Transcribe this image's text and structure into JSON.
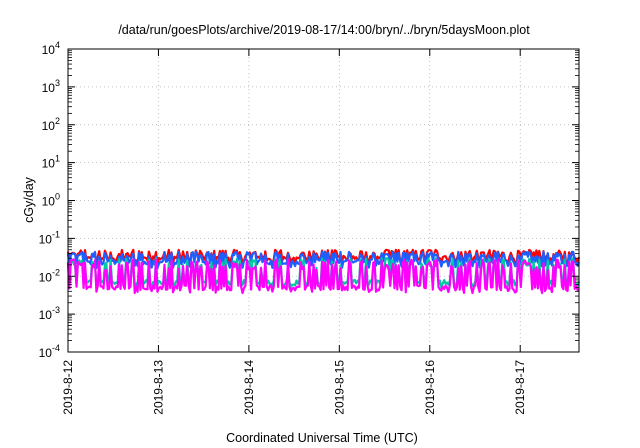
{
  "chart_data": {
    "type": "line",
    "title": "/data/run/goesPlots/archive/2019-08-17/14:00/bryn/../bryn/5daysMoon.plot",
    "xlabel": "Coordinated Universal Time (UTC)",
    "ylabel": "cGy/day",
    "yscale": "log",
    "ylim": [
      0.0001,
      10000
    ],
    "yticks": [
      {
        "base": "10",
        "exp": "-4"
      },
      {
        "base": "10",
        "exp": "-3"
      },
      {
        "base": "10",
        "exp": "-2"
      },
      {
        "base": "10",
        "exp": "-1"
      },
      {
        "base": "10",
        "exp": "0"
      },
      {
        "base": "10",
        "exp": "1"
      },
      {
        "base": "10",
        "exp": "2"
      },
      {
        "base": "10",
        "exp": "3"
      },
      {
        "base": "10",
        "exp": "4"
      }
    ],
    "xlim": [
      0,
      5.65
    ],
    "xticks": [
      "2019-8-12",
      "2019-8-13",
      "2019-8-14",
      "2019-8-15",
      "2019-8-16",
      "2019-8-17"
    ],
    "grid": true,
    "legend": "none",
    "series": [
      {
        "color": "#ff0000",
        "baseline": 0.03,
        "spike": 0.05,
        "valley": 0.022
      },
      {
        "color": "#1e5fff",
        "baseline": 0.024,
        "spike": 0.045,
        "valley": 0.018
      },
      {
        "color": "#00c8a0",
        "baseline": 0.007,
        "spike": 0.03,
        "valley": 0.0055
      },
      {
        "color": "#ff00ff",
        "baseline": 0.005,
        "spike": 0.028,
        "valley": 0.004
      }
    ]
  }
}
